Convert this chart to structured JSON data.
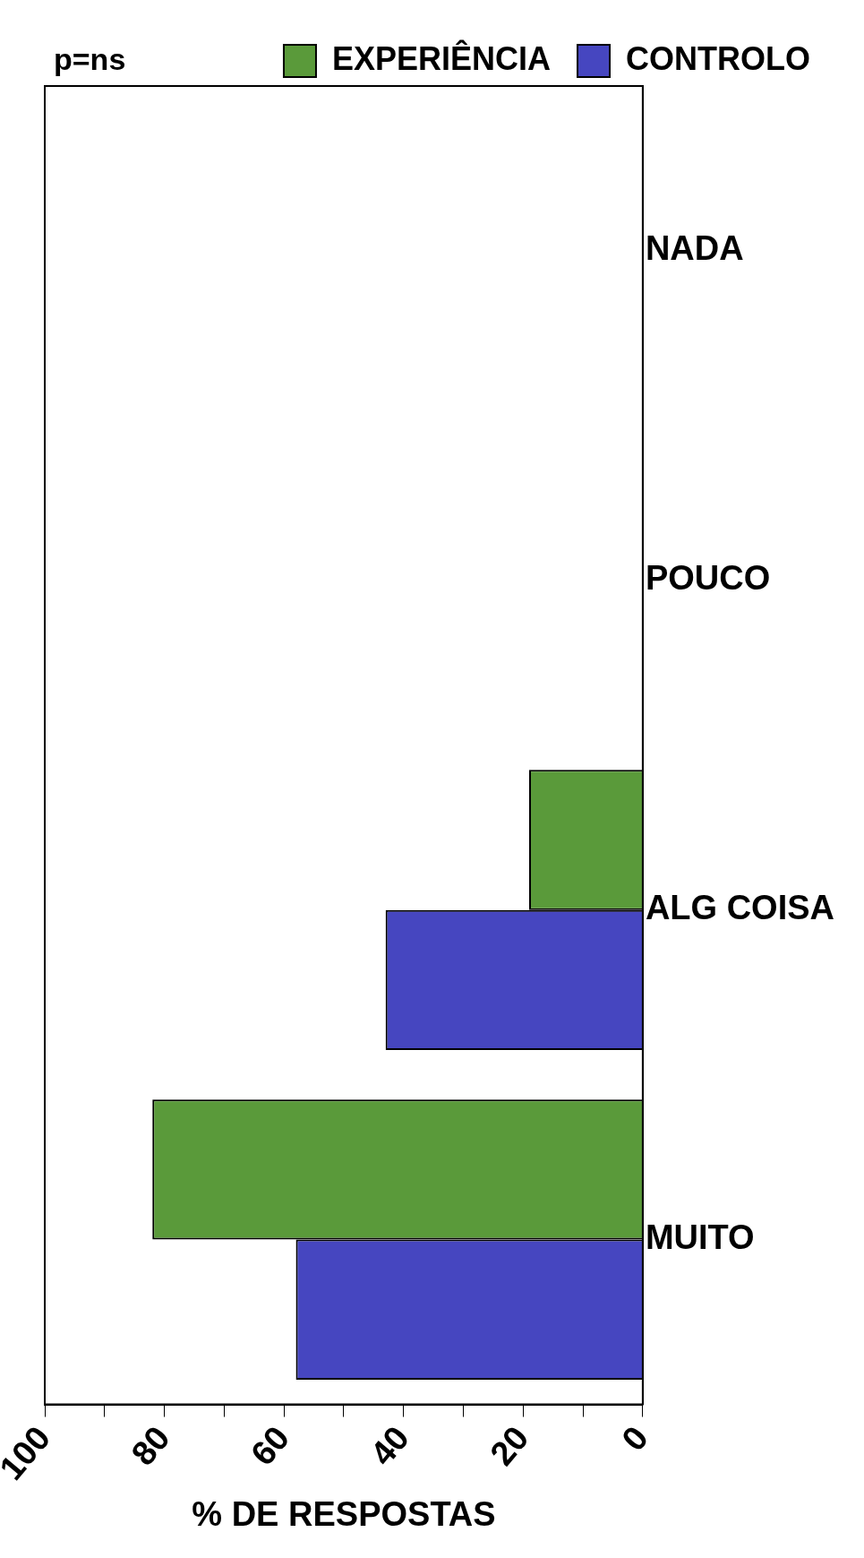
{
  "chart_data": {
    "type": "bar",
    "orientation": "horizontal",
    "xlabel": "% DE RESPOSTAS",
    "annotations": [
      "p=ns"
    ],
    "categories": [
      "NADA",
      "POUCO",
      "ALG COISA",
      "MUITO"
    ],
    "series": [
      {
        "name": "EXPERIÊNCIA",
        "color": "#5a9a3a",
        "values": [
          0,
          0,
          19,
          82
        ]
      },
      {
        "name": "CONTROLO",
        "color": "#4646c0",
        "values": [
          0,
          0,
          43,
          58
        ]
      }
    ],
    "xlim": [
      100,
      0
    ],
    "xticks": [
      0,
      {
        "value": 10,
        "label": null
      },
      20,
      {
        "value": 30,
        "label": null
      },
      40,
      {
        "value": 50,
        "label": null
      },
      60,
      {
        "value": 70,
        "label": null
      },
      80,
      {
        "value": 90,
        "label": null
      },
      100
    ],
    "grid": false,
    "legend": "top right"
  }
}
